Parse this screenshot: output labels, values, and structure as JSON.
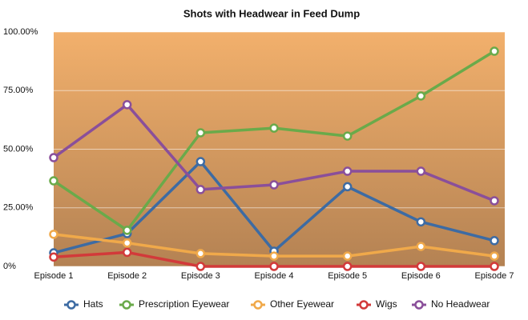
{
  "chart_data": {
    "type": "line",
    "title": "Shots with Headwear in Feed Dump",
    "categories": [
      "Episode 1",
      "Episode 2",
      "Episode 3",
      "Episode 4",
      "Episode 5",
      "Episode 6",
      "Episode 7"
    ],
    "ylim": [
      0,
      100
    ],
    "yticks": [
      {
        "value": 0,
        "label": "0%"
      },
      {
        "value": 25,
        "label": "25.00%"
      },
      {
        "value": 50,
        "label": "50.00%"
      },
      {
        "value": 75,
        "label": "75.00%"
      },
      {
        "value": 100,
        "label": "100.00%"
      }
    ],
    "grid": true,
    "legend": "bottom",
    "series": [
      {
        "name": "Hats",
        "color": "#3d6ba3",
        "values": [
          5.8,
          14,
          44.7,
          6.5,
          34,
          19,
          11
        ]
      },
      {
        "name": "Prescription Eyewear",
        "color": "#6aaa4a",
        "values": [
          36.5,
          15.4,
          57,
          59,
          55.6,
          72.7,
          91.8
        ]
      },
      {
        "name": "Other Eyewear",
        "color": "#f0a94a",
        "values": [
          13.7,
          10,
          5.5,
          4.4,
          4.4,
          8.5,
          4.4
        ]
      },
      {
        "name": "Wigs",
        "color": "#d23a3a",
        "values": [
          4,
          6,
          0,
          0,
          0,
          0,
          0
        ]
      },
      {
        "name": "No Headwear",
        "color": "#8a4f9a",
        "values": [
          46.4,
          69,
          32.8,
          34.8,
          40.6,
          40.6,
          28
        ]
      }
    ]
  }
}
